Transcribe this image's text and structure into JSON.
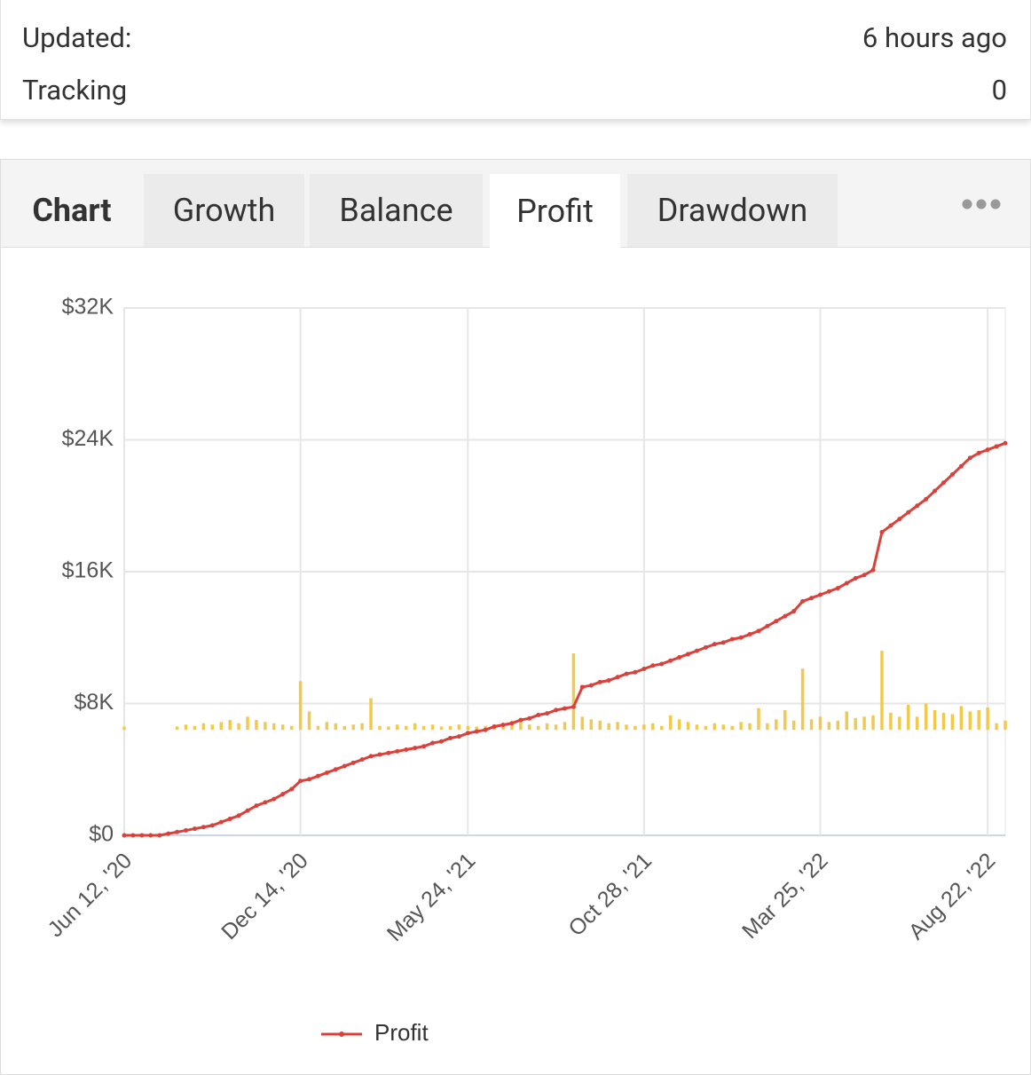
{
  "info": {
    "rows": [
      [
        "Updated:",
        "6 hours ago"
      ],
      [
        "Tracking",
        "0"
      ]
    ]
  },
  "tabs": {
    "items": [
      "Chart",
      "Growth",
      "Balance",
      "Profit",
      "Drawdown"
    ],
    "active": 3
  },
  "chart_data": {
    "type": "line",
    "categories": [
      "Jun 12, '20",
      null,
      null,
      null,
      null,
      null,
      null,
      null,
      null,
      null,
      null,
      null,
      null,
      null,
      null,
      null,
      null,
      null,
      null,
      null,
      "Dec 14, '20",
      null,
      null,
      null,
      null,
      null,
      null,
      null,
      null,
      null,
      null,
      null,
      null,
      null,
      null,
      null,
      null,
      null,
      null,
      "May 24, '21",
      null,
      null,
      null,
      null,
      null,
      null,
      null,
      null,
      null,
      null,
      null,
      null,
      null,
      null,
      null,
      null,
      null,
      null,
      null,
      "Oct 28, '21",
      null,
      null,
      null,
      null,
      null,
      null,
      null,
      null,
      null,
      null,
      null,
      null,
      null,
      null,
      null,
      null,
      null,
      null,
      null,
      "Mar 25, '22",
      null,
      null,
      null,
      null,
      null,
      null,
      null,
      null,
      null,
      null,
      null,
      null,
      null,
      null,
      null,
      null,
      null,
      null,
      "Aug 22, '22",
      null,
      null
    ],
    "series": [
      {
        "name": "Profit",
        "color": "#d9413a",
        "values": [
          0,
          0,
          0,
          0,
          0,
          100,
          200,
          300,
          400,
          500,
          600,
          800,
          1000,
          1200,
          1500,
          1800,
          2000,
          2200,
          2500,
          2800,
          3300,
          3400,
          3600,
          3800,
          4000,
          4200,
          4400,
          4600,
          4800,
          4900,
          5000,
          5100,
          5200,
          5300,
          5400,
          5600,
          5700,
          5900,
          6000,
          6200,
          6300,
          6400,
          6600,
          6700,
          6800,
          7000,
          7100,
          7300,
          7400,
          7600,
          7700,
          7800,
          9000,
          9100,
          9300,
          9400,
          9600,
          9800,
          9900,
          10100,
          10300,
          10400,
          10600,
          10800,
          11000,
          11200,
          11400,
          11600,
          11700,
          11900,
          12000,
          12200,
          12400,
          12700,
          13000,
          13300,
          13600,
          14200,
          14400,
          14600,
          14800,
          15000,
          15300,
          15600,
          15800,
          16100,
          18400,
          18800,
          19200,
          19600,
          20000,
          20400,
          20900,
          21400,
          21900,
          22400,
          22900,
          23200,
          23400,
          23600,
          23800
        ]
      },
      {
        "type": "bar",
        "axis": "y2",
        "color": "#f2c94c",
        "values": [
          50,
          0,
          0,
          0,
          0,
          0,
          50,
          80,
          60,
          100,
          80,
          120,
          150,
          100,
          200,
          150,
          120,
          100,
          80,
          60,
          740,
          280,
          60,
          120,
          100,
          60,
          80,
          100,
          480,
          60,
          50,
          80,
          60,
          100,
          60,
          80,
          50,
          60,
          80,
          60,
          50,
          60,
          80,
          60,
          100,
          120,
          80,
          60,
          100,
          80,
          120,
          1160,
          200,
          160,
          140,
          100,
          120,
          80,
          60,
          80,
          100,
          60,
          220,
          160,
          120,
          80,
          60,
          100,
          80,
          60,
          120,
          100,
          330,
          100,
          160,
          300,
          140,
          930,
          160,
          200,
          120,
          140,
          280,
          180,
          200,
          220,
          1200,
          260,
          200,
          380,
          200,
          400,
          300,
          260,
          240,
          360,
          280,
          300,
          340,
          100,
          140
        ]
      }
    ],
    "ylim": [
      0,
      32000
    ],
    "yticks": [
      {
        "value": 0,
        "label": "$0"
      },
      {
        "value": 8000,
        "label": "$8K"
      },
      {
        "value": 16000,
        "label": "$16K"
      },
      {
        "value": 24000,
        "label": "$24K"
      },
      {
        "value": 32000,
        "label": "$32K"
      }
    ],
    "y2lim": [
      -1600,
      6400
    ],
    "grid": true
  }
}
